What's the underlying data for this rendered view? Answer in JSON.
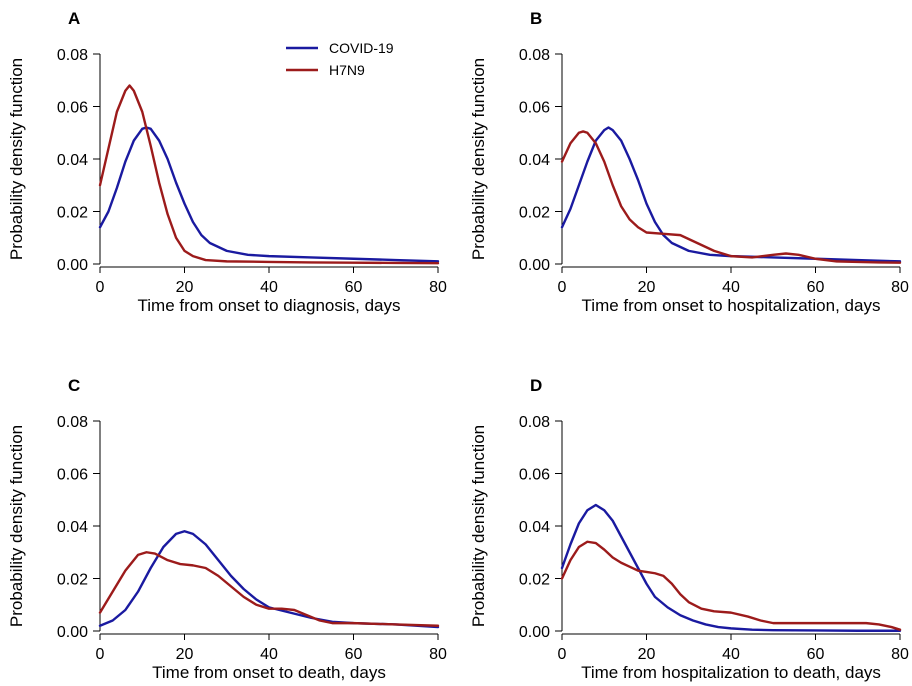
{
  "colors": {
    "covid": "#1a1aa0",
    "h7n9": "#9c1b1b"
  },
  "chart_data": [
    {
      "type": "line",
      "panel": "A",
      "xlabel": "Time from onset to diagnosis, days",
      "ylabel": "Probability density function",
      "xlim": [
        0,
        80
      ],
      "ylim": [
        0,
        0.08
      ],
      "xticks": [
        0,
        20,
        40,
        60,
        80
      ],
      "yticks": [
        "0.00",
        "0.02",
        "0.04",
        "0.06",
        "0.08"
      ],
      "legend": {
        "placement": "top-center",
        "entries": [
          "COVID-19",
          "H7N9"
        ]
      },
      "series": [
        {
          "name": "COVID-19",
          "color": "#1a1aa0",
          "x": [
            0,
            2,
            4,
            6,
            8,
            10,
            11,
            12,
            14,
            16,
            18,
            20,
            22,
            24,
            26,
            30,
            35,
            40,
            50,
            60,
            70,
            80
          ],
          "y": [
            0.014,
            0.02,
            0.029,
            0.039,
            0.047,
            0.0515,
            0.052,
            0.0515,
            0.047,
            0.04,
            0.031,
            0.023,
            0.016,
            0.011,
            0.008,
            0.005,
            0.0035,
            0.003,
            0.0025,
            0.002,
            0.0015,
            0.001
          ]
        },
        {
          "name": "H7N9",
          "color": "#9c1b1b",
          "x": [
            0,
            2,
            4,
            6,
            7,
            8,
            10,
            12,
            14,
            16,
            18,
            20,
            22,
            25,
            30,
            40,
            50,
            60,
            70,
            80
          ],
          "y": [
            0.03,
            0.044,
            0.058,
            0.066,
            0.068,
            0.066,
            0.058,
            0.045,
            0.031,
            0.019,
            0.01,
            0.005,
            0.003,
            0.0015,
            0.001,
            0.0008,
            0.0006,
            0.0005,
            0.0004,
            0.0003
          ]
        }
      ]
    },
    {
      "type": "line",
      "panel": "B",
      "xlabel": "Time from onset to hospitalization, days",
      "ylabel": "Probability density function",
      "xlim": [
        0,
        80
      ],
      "ylim": [
        0,
        0.08
      ],
      "xticks": [
        0,
        20,
        40,
        60,
        80
      ],
      "yticks": [
        "0.00",
        "0.02",
        "0.04",
        "0.06",
        "0.08"
      ],
      "series": [
        {
          "name": "COVID-19",
          "color": "#1a1aa0",
          "x": [
            0,
            2,
            4,
            6,
            8,
            10,
            11,
            12,
            14,
            16,
            18,
            20,
            22,
            24,
            26,
            30,
            35,
            40,
            50,
            60,
            70,
            80
          ],
          "y": [
            0.014,
            0.021,
            0.03,
            0.039,
            0.047,
            0.051,
            0.052,
            0.051,
            0.047,
            0.04,
            0.032,
            0.023,
            0.016,
            0.011,
            0.008,
            0.005,
            0.0035,
            0.003,
            0.0025,
            0.002,
            0.0015,
            0.001
          ]
        },
        {
          "name": "H7N9",
          "color": "#9c1b1b",
          "x": [
            0,
            2,
            4,
            5,
            6,
            8,
            10,
            12,
            14,
            16,
            18,
            20,
            24,
            28,
            32,
            36,
            40,
            45,
            50,
            53,
            56,
            60,
            65,
            70,
            75,
            80
          ],
          "y": [
            0.039,
            0.046,
            0.05,
            0.0505,
            0.05,
            0.046,
            0.039,
            0.03,
            0.022,
            0.017,
            0.014,
            0.012,
            0.0115,
            0.011,
            0.008,
            0.005,
            0.003,
            0.0025,
            0.0035,
            0.004,
            0.0035,
            0.002,
            0.001,
            0.0008,
            0.0006,
            0.0005
          ]
        }
      ]
    },
    {
      "type": "line",
      "panel": "C",
      "xlabel": "Time from onset to death, days",
      "ylabel": "Probability density function",
      "xlim": [
        0,
        80
      ],
      "ylim": [
        0,
        0.08
      ],
      "xticks": [
        0,
        20,
        40,
        60,
        80
      ],
      "yticks": [
        "0.00",
        "0.02",
        "0.04",
        "0.06",
        "0.08"
      ],
      "series": [
        {
          "name": "COVID-19",
          "color": "#1a1aa0",
          "x": [
            0,
            3,
            6,
            9,
            12,
            15,
            18,
            20,
            22,
            25,
            28,
            31,
            34,
            37,
            40,
            45,
            50,
            55,
            60,
            70,
            80
          ],
          "y": [
            0.002,
            0.004,
            0.008,
            0.015,
            0.024,
            0.032,
            0.037,
            0.038,
            0.037,
            0.033,
            0.027,
            0.021,
            0.016,
            0.012,
            0.009,
            0.007,
            0.005,
            0.0035,
            0.003,
            0.0025,
            0.0015
          ]
        },
        {
          "name": "H7N9",
          "color": "#9c1b1b",
          "x": [
            0,
            3,
            6,
            9,
            11,
            13,
            16,
            19,
            22,
            25,
            28,
            31,
            34,
            37,
            40,
            43,
            46,
            49,
            52,
            55,
            60,
            70,
            80
          ],
          "y": [
            0.007,
            0.015,
            0.023,
            0.029,
            0.03,
            0.0295,
            0.027,
            0.0255,
            0.025,
            0.024,
            0.021,
            0.017,
            0.013,
            0.01,
            0.0085,
            0.0085,
            0.008,
            0.006,
            0.004,
            0.003,
            0.003,
            0.0025,
            0.002
          ]
        }
      ]
    },
    {
      "type": "line",
      "panel": "D",
      "xlabel": "Time from hospitalization to death, days",
      "ylabel": "Probability density function",
      "xlim": [
        0,
        80
      ],
      "ylim": [
        0,
        0.08
      ],
      "xticks": [
        0,
        20,
        40,
        60,
        80
      ],
      "yticks": [
        "0.00",
        "0.02",
        "0.04",
        "0.06",
        "0.08"
      ],
      "series": [
        {
          "name": "COVID-19",
          "color": "#1a1aa0",
          "x": [
            0,
            2,
            4,
            6,
            8,
            10,
            12,
            14,
            16,
            18,
            20,
            22,
            25,
            28,
            31,
            34,
            37,
            40,
            45,
            50,
            60,
            70,
            80
          ],
          "y": [
            0.024,
            0.033,
            0.041,
            0.046,
            0.048,
            0.046,
            0.042,
            0.036,
            0.03,
            0.024,
            0.018,
            0.013,
            0.009,
            0.006,
            0.004,
            0.0025,
            0.0015,
            0.001,
            0.0005,
            0.0003,
            0.0002,
            0.0001,
            0.0001
          ]
        },
        {
          "name": "H7N9",
          "color": "#9c1b1b",
          "x": [
            0,
            2,
            4,
            6,
            8,
            10,
            12,
            14,
            16,
            18,
            20,
            22,
            24,
            26,
            28,
            30,
            33,
            36,
            40,
            44,
            47,
            50,
            55,
            60,
            65,
            70,
            72,
            75,
            78,
            80
          ],
          "y": [
            0.02,
            0.027,
            0.032,
            0.034,
            0.0335,
            0.031,
            0.028,
            0.026,
            0.0245,
            0.023,
            0.0225,
            0.022,
            0.021,
            0.018,
            0.014,
            0.011,
            0.0085,
            0.0075,
            0.007,
            0.0055,
            0.004,
            0.003,
            0.003,
            0.003,
            0.003,
            0.003,
            0.003,
            0.0025,
            0.0015,
            0.0005
          ]
        }
      ]
    }
  ]
}
